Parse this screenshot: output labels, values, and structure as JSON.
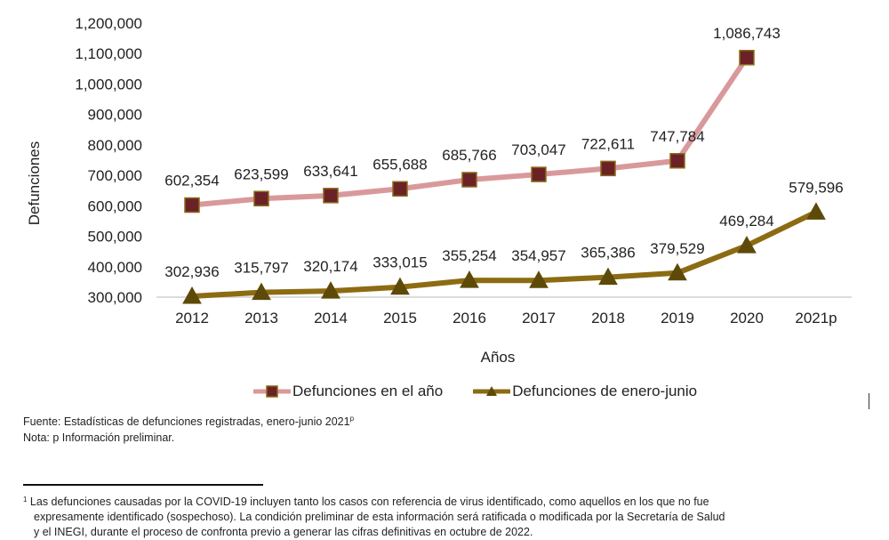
{
  "chart_data": {
    "type": "line",
    "title": "",
    "xlabel": "Años",
    "ylabel": "Defunciones",
    "categories": [
      "2012",
      "2013",
      "2014",
      "2015",
      "2016",
      "2017",
      "2018",
      "2019",
      "2020",
      "2021p"
    ],
    "ylim": [
      300000,
      1200000
    ],
    "yticks": [
      300000,
      400000,
      500000,
      600000,
      700000,
      800000,
      900000,
      1000000,
      1100000,
      1200000
    ],
    "ytick_labels": [
      "300,000",
      "400,000",
      "500,000",
      "600,000",
      "700,000",
      "800,000",
      "900,000",
      "1,000,000",
      "1,100,000",
      "1,200,000"
    ],
    "grid": false,
    "legend_position": "bottom",
    "series": [
      {
        "name": "Defunciones en el año",
        "marker": "square",
        "line_color": "#d9999b",
        "marker_color": "#6b2226",
        "marker_edge": "#8a6a1a",
        "values": [
          602354,
          623599,
          633641,
          655688,
          685766,
          703047,
          722611,
          747784,
          1086743,
          null
        ],
        "labels": [
          "602,354",
          "623,599",
          "633,641",
          "655,688",
          "685,766",
          "703,047",
          "722,611",
          "747,784",
          "1,086,743",
          ""
        ]
      },
      {
        "name": "Defunciones de enero-junio",
        "marker": "triangle",
        "line_color": "#8c6b12",
        "marker_color": "#5e4a08",
        "marker_edge": "#5e4a08",
        "values": [
          302936,
          315797,
          320174,
          333015,
          355254,
          354957,
          365386,
          379529,
          469284,
          579596
        ],
        "labels": [
          "302,936",
          "315,797",
          "320,174",
          "333,015",
          "355,254",
          "354,957",
          "365,386",
          "379,529",
          "469,284",
          "579,596"
        ]
      }
    ]
  },
  "notes": {
    "source": "Fuente: Estadísticas de defunciones registradas, enero-junio 2021",
    "source_sup": "p",
    "note": "Nota: p Información preliminar."
  },
  "footnote": {
    "marker": "1",
    "line1": " Las defunciones causadas por la COVID-19 incluyen tanto los casos con referencia de virus identificado, como aquellos en los que no fue",
    "line2": "expresamente identificado (sospechoso). La condición preliminar de esta información será ratificada o modificada por la Secretaría de Salud",
    "line3": "y el INEGI, durante el proceso de confronta previo a generar las cifras definitivas en octubre de 2022."
  }
}
